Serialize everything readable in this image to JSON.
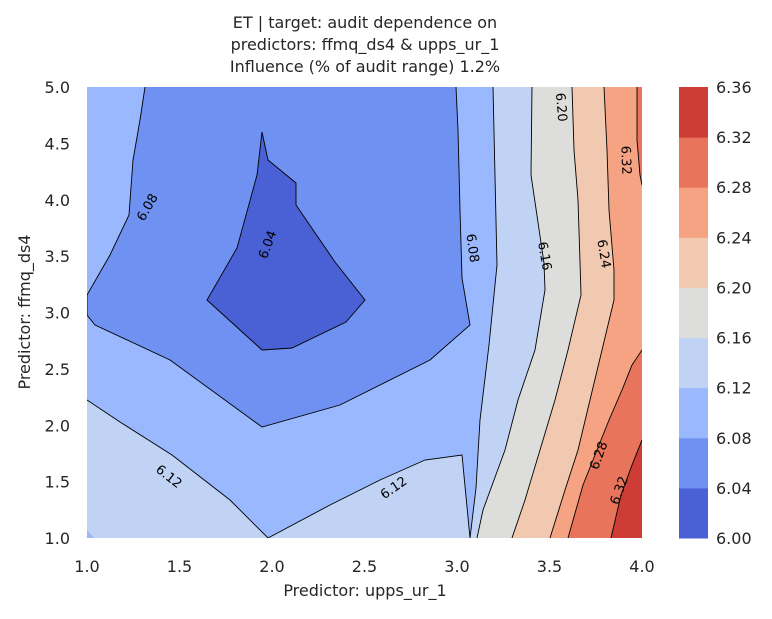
{
  "chart_data": {
    "type": "contour",
    "title_lines": [
      "ET | target: audit dependence on",
      "predictors: ffmq_ds4 & upps_ur_1",
      "Influence (% of audit range) 1.2%"
    ],
    "xlabel": "Predictor: upps_ur_1",
    "ylabel": "Predictor: ffmq_ds4",
    "xlim": [
      1.0,
      4.0
    ],
    "ylim": [
      1.0,
      5.0
    ],
    "x_ticks": [
      "1.0",
      "1.5",
      "2.0",
      "2.5",
      "3.0",
      "3.5",
      "4.0"
    ],
    "y_ticks": [
      "1.0",
      "1.5",
      "2.0",
      "2.5",
      "3.0",
      "3.5",
      "4.0",
      "4.5",
      "5.0"
    ],
    "colorbar": {
      "levels": [
        6.0,
        6.04,
        6.08,
        6.12,
        6.16,
        6.2,
        6.24,
        6.28,
        6.32,
        6.36
      ],
      "tick_labels": [
        "6.00",
        "6.04",
        "6.08",
        "6.12",
        "6.16",
        "6.20",
        "6.24",
        "6.28",
        "6.32",
        "6.36"
      ],
      "colors": [
        "#4a61d6",
        "#6f91f1",
        "#9ab8fd",
        "#c0d3f5",
        "#dddddc",
        "#f1c8b0",
        "#f5a383",
        "#e8745c",
        "#cd3d36"
      ]
    },
    "contour_labels": [
      {
        "text": "6.04",
        "x": 1.98,
        "y": 3.6
      },
      {
        "text": "6.08",
        "x": 1.33,
        "y": 3.93
      },
      {
        "text": "6.08",
        "x": 3.08,
        "y": 3.57
      },
      {
        "text": "6.12",
        "x": 1.44,
        "y": 1.54
      },
      {
        "text": "6.12",
        "x": 2.66,
        "y": 1.44
      },
      {
        "text": "6.16",
        "x": 3.47,
        "y": 3.5
      },
      {
        "text": "6.20",
        "x": 3.56,
        "y": 4.82
      },
      {
        "text": "6.24",
        "x": 3.79,
        "y": 3.52
      },
      {
        "text": "6.28",
        "x": 3.77,
        "y": 1.73
      },
      {
        "text": "6.32",
        "x": 3.91,
        "y": 4.35
      },
      {
        "text": "6.32",
        "x": 3.88,
        "y": 1.42
      }
    ]
  }
}
